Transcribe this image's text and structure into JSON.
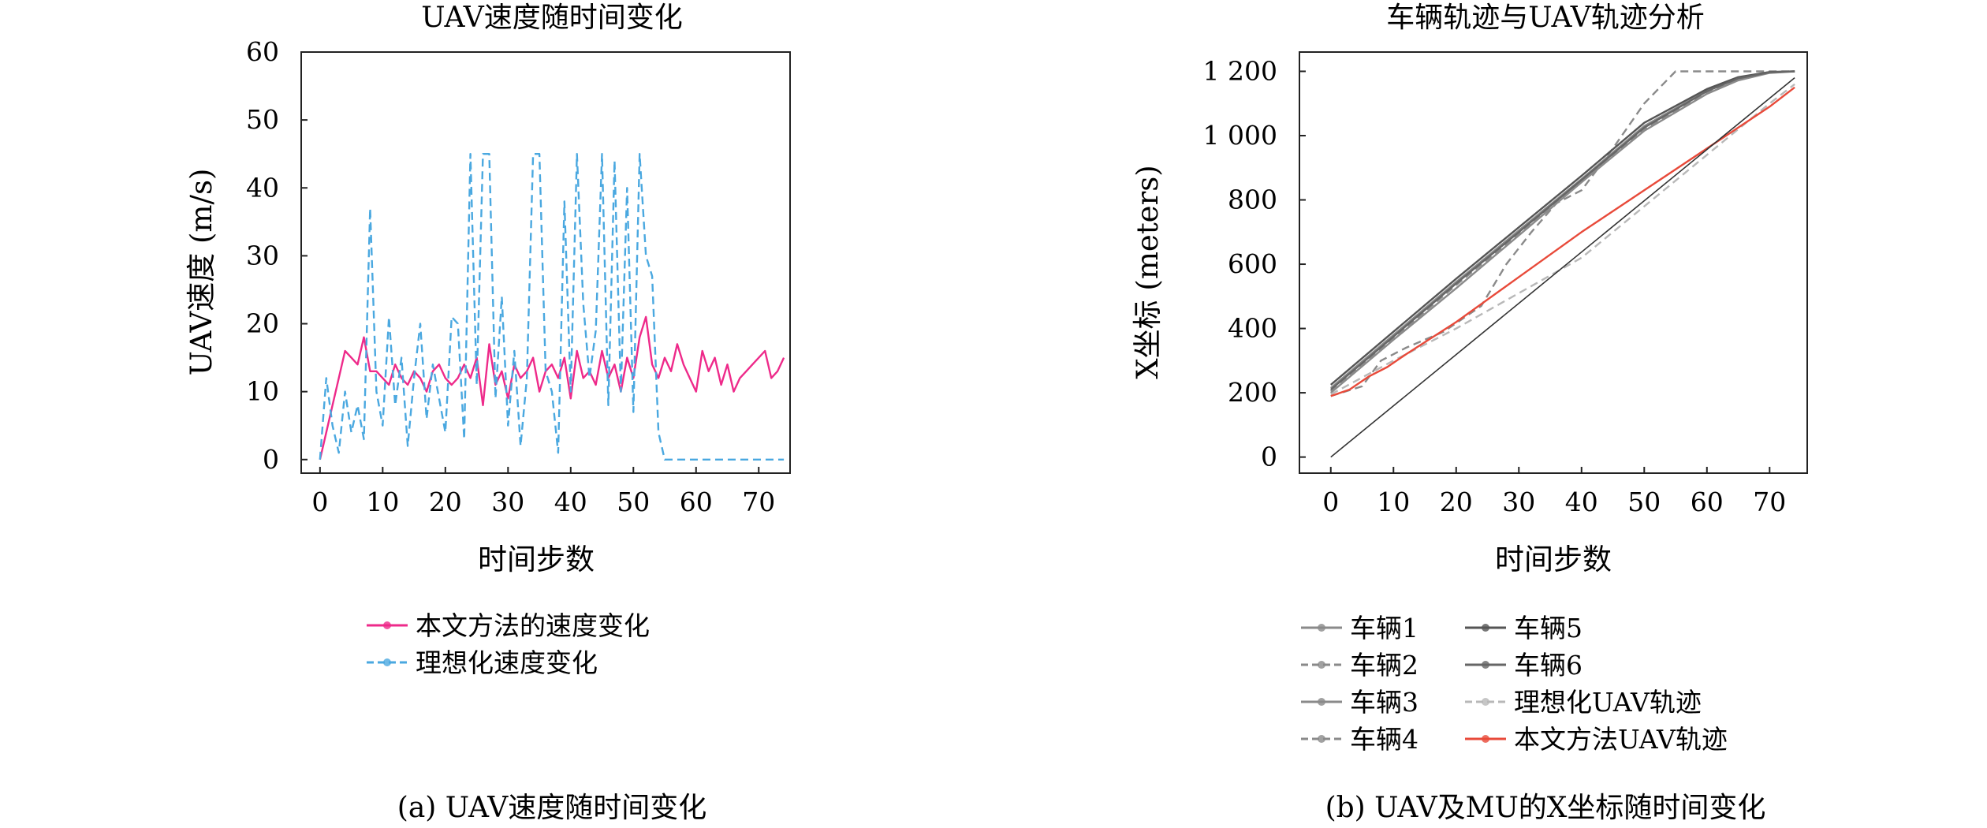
{
  "chart_data": [
    {
      "type": "line",
      "title": "UAV速度随时间变化",
      "caption": "(a) UAV速度随时间变化",
      "xlabel": "时间步数",
      "ylabel": "UAV速度 (m/s)",
      "xlim": [
        -3,
        75
      ],
      "ylim": [
        -2,
        60
      ],
      "xticks": [
        "0",
        "10",
        "20",
        "30",
        "40",
        "50",
        "60",
        "70"
      ],
      "yticks": [
        "0",
        "10",
        "20",
        "30",
        "40",
        "50",
        "60"
      ],
      "grid": false,
      "legend_position": "below",
      "series": [
        {
          "name": "本文方法的速度变化",
          "color": "#ee2a8a",
          "x": [
            0,
            1,
            2,
            3,
            4,
            5,
            6,
            7,
            8,
            9,
            10,
            11,
            12,
            13,
            14,
            15,
            16,
            17,
            18,
            19,
            20,
            21,
            22,
            23,
            24,
            25,
            26,
            27,
            28,
            29,
            30,
            31,
            32,
            33,
            34,
            35,
            36,
            37,
            38,
            39,
            40,
            41,
            42,
            43,
            44,
            45,
            46,
            47,
            48,
            49,
            50,
            51,
            52,
            53,
            54,
            55,
            56,
            57,
            58,
            59,
            60,
            61,
            62,
            63,
            64,
            65,
            66,
            67,
            68,
            69,
            70,
            71,
            72,
            73,
            74
          ],
          "values": [
            0,
            4,
            8,
            12,
            16,
            15,
            14,
            18,
            13,
            13,
            12,
            11,
            14,
            12,
            11,
            13,
            12,
            10,
            13,
            14,
            12,
            11,
            12,
            14,
            12,
            15,
            8,
            17,
            11,
            13,
            9,
            14,
            12,
            13,
            15,
            10,
            13,
            14,
            12,
            15,
            9,
            16,
            12,
            13,
            11,
            16,
            12,
            14,
            10,
            15,
            12,
            18,
            21,
            14,
            12,
            15,
            13,
            17,
            14,
            12,
            10,
            16,
            13,
            15,
            11,
            14,
            10,
            12,
            13,
            14,
            15,
            16,
            12,
            13,
            15
          ]
        },
        {
          "name": "理想化速度变化",
          "color": "#4aa8e0",
          "x": [
            0,
            1,
            2,
            3,
            4,
            5,
            6,
            7,
            8,
            9,
            10,
            11,
            12,
            13,
            14,
            15,
            16,
            17,
            18,
            19,
            20,
            21,
            22,
            23,
            24,
            25,
            26,
            27,
            28,
            29,
            30,
            31,
            32,
            33,
            34,
            35,
            36,
            37,
            38,
            39,
            40,
            41,
            42,
            43,
            44,
            45,
            46,
            47,
            48,
            49,
            50,
            51,
            52,
            53,
            54,
            55,
            56,
            57,
            58,
            59,
            60,
            61,
            62,
            63,
            64,
            65,
            66,
            67,
            68,
            69,
            70,
            71,
            72,
            73,
            74
          ],
          "values": [
            0,
            12,
            5,
            1,
            10,
            4,
            8,
            3,
            37,
            10,
            5,
            21,
            8,
            15,
            2,
            12,
            20,
            6,
            14,
            9,
            4,
            21,
            20,
            3,
            45,
            11,
            45,
            45,
            9,
            24,
            5,
            16,
            2,
            12,
            45,
            45,
            13,
            10,
            1,
            38,
            10,
            45,
            23,
            12,
            19,
            45,
            8,
            44,
            10,
            40,
            7,
            45,
            30,
            27,
            4,
            0,
            0,
            0,
            0,
            0,
            0,
            0,
            0,
            0,
            0,
            0,
            0,
            0,
            0,
            0,
            0,
            0,
            0,
            0,
            0
          ]
        }
      ]
    },
    {
      "type": "line",
      "title": "车辆轨迹与UAV轨迹分析",
      "caption": "(b) UAV及MU的X坐标随时间变化",
      "xlabel": "时间步数",
      "ylabel": "X坐标 (meters)",
      "xlim": [
        -5,
        76
      ],
      "ylim": [
        -50,
        1260
      ],
      "xticks": [
        "0",
        "10",
        "20",
        "30",
        "40",
        "50",
        "60",
        "70"
      ],
      "yticks": [
        "0",
        "200",
        "400",
        "600",
        "800",
        "1 000",
        "1 200"
      ],
      "grid": false,
      "legend_position": "below",
      "series": [
        {
          "name": "车辆1",
          "color": "#8a8a8a",
          "x": [
            0,
            10,
            20,
            30,
            40,
            50,
            60,
            65,
            70,
            74
          ],
          "values": [
            215,
            380,
            545,
            705,
            865,
            1030,
            1140,
            1180,
            1198,
            1200
          ]
        },
        {
          "name": "车辆2",
          "color": "#8a8a8a",
          "x": [
            0,
            10,
            20,
            30,
            40,
            50,
            60,
            65,
            70,
            74
          ],
          "values": [
            205,
            370,
            535,
            695,
            860,
            1020,
            1135,
            1175,
            1196,
            1200
          ]
        },
        {
          "name": "车辆3",
          "color": "#8a8a8a",
          "x": [
            0,
            10,
            20,
            30,
            40,
            50,
            60,
            65,
            70,
            74
          ],
          "values": [
            200,
            365,
            525,
            690,
            855,
            1015,
            1130,
            1172,
            1195,
            1200
          ]
        },
        {
          "name": "车辆4",
          "color": "#8a8a8a",
          "x": [
            0,
            5,
            8,
            12,
            18,
            24,
            28,
            32,
            36,
            40,
            45,
            50,
            55,
            60,
            65,
            70,
            74
          ],
          "values": [
            190,
            220,
            300,
            340,
            390,
            470,
            600,
            700,
            790,
            830,
            960,
            1100,
            1200,
            1200,
            1200,
            1200,
            1200
          ]
        },
        {
          "name": "车辆5",
          "color": "#555555",
          "x": [
            0,
            10,
            20,
            30,
            40,
            50,
            60,
            65,
            70,
            74
          ],
          "values": [
            225,
            390,
            555,
            715,
            875,
            1040,
            1145,
            1182,
            1198,
            1200
          ]
        },
        {
          "name": "车辆6",
          "color": "#666666",
          "x": [
            0,
            10,
            20,
            30,
            40,
            50,
            60,
            65,
            70,
            74
          ],
          "values": [
            210,
            375,
            540,
            700,
            862,
            1025,
            1138,
            1178,
            1197,
            1200
          ]
        },
        {
          "name": "理想化UAV轨迹",
          "color": "#b8b8b8",
          "x": [
            0,
            10,
            20,
            30,
            40,
            50,
            60,
            70,
            74
          ],
          "values": [
            195,
            300,
            400,
            510,
            620,
            780,
            940,
            1100,
            1160
          ]
        },
        {
          "name": "本文方法UAV轨迹",
          "color": "#e84a3a",
          "x": [
            0,
            3,
            6,
            9,
            12,
            20,
            30,
            40,
            50,
            60,
            70,
            74
          ],
          "values": [
            190,
            210,
            250,
            280,
            320,
            420,
            560,
            700,
            830,
            960,
            1090,
            1150
          ]
        },
        {
          "name": "",
          "color": "#333333",
          "x": [
            0,
            74
          ],
          "values": [
            0,
            1180
          ]
        }
      ]
    }
  ]
}
